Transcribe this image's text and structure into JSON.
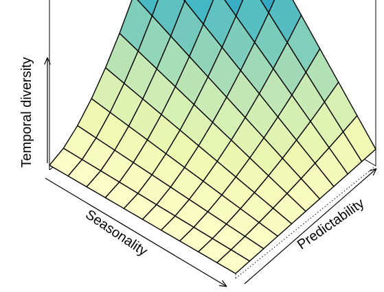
{
  "chart_data": {
    "type": "surface3d",
    "title": "",
    "xlabel": "Seasonality",
    "ylabel": "Predictability",
    "zlabel": "Temporal diversity",
    "grid_n": 10,
    "x": [
      0,
      0.1,
      0.2,
      0.3,
      0.4,
      0.5,
      0.6,
      0.7,
      0.8,
      0.9,
      1
    ],
    "y": [
      0,
      0.1,
      0.2,
      0.3,
      0.4,
      0.5,
      0.6,
      0.7,
      0.8,
      0.9,
      1
    ],
    "zlim": [
      0,
      1
    ],
    "surface": "z ≈ 0.02 + 0.05·y + 0.95·x·y^1.7 (increasing in both seasonality and predictability)",
    "colormap": [
      "#ffffcc",
      "#edf8b1",
      "#c7e9b4",
      "#7fcdbb",
      "#41b6c4",
      "#1d91c0",
      "#225ea8",
      "#253494",
      "#081d58"
    ]
  }
}
